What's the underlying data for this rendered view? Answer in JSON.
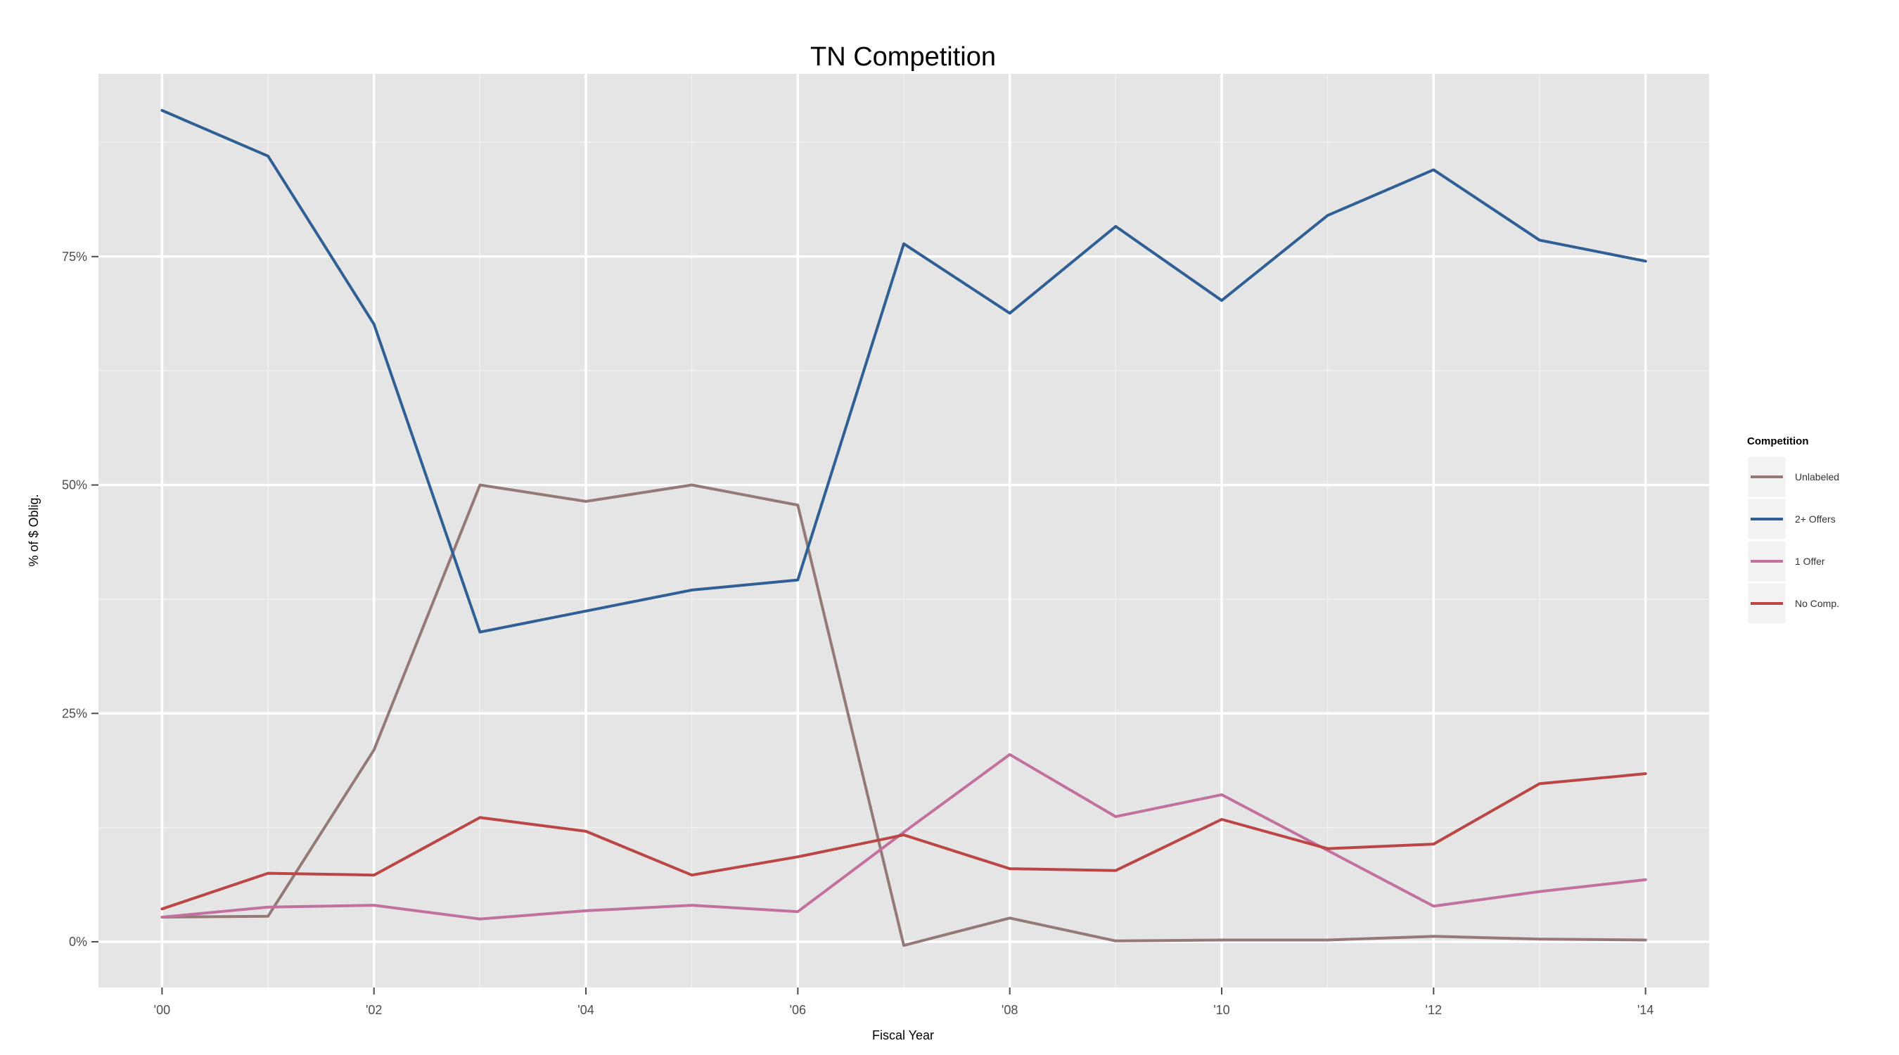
{
  "chart_data": {
    "type": "line",
    "title": "TN Competition",
    "xlabel": "Fiscal Year",
    "ylabel": "% of $ Oblig.",
    "x": [
      2000,
      2001,
      2002,
      2003,
      2004,
      2005,
      2006,
      2007,
      2008,
      2009,
      2010,
      2011,
      2012,
      2013,
      2014
    ],
    "xlim": [
      1999.4,
      2014.6
    ],
    "ylim": [
      -0.05,
      0.95
    ],
    "x_ticks": [
      {
        "value": 2000,
        "label": "'00"
      },
      {
        "value": 2002,
        "label": "'02"
      },
      {
        "value": 2004,
        "label": "'04"
      },
      {
        "value": 2006,
        "label": "'06"
      },
      {
        "value": 2008,
        "label": "'08"
      },
      {
        "value": 2010,
        "label": "'10"
      },
      {
        "value": 2012,
        "label": "'12"
      },
      {
        "value": 2014,
        "label": "'14"
      }
    ],
    "y_ticks": [
      {
        "value": 0,
        "label": "0%"
      },
      {
        "value": 0.25,
        "label": "25%"
      },
      {
        "value": 0.5,
        "label": "50%"
      },
      {
        "value": 0.75,
        "label": "75%"
      }
    ],
    "grid": true,
    "legend": {
      "title": "Competition",
      "position": "right"
    },
    "series": [
      {
        "name": "Unlabeled",
        "color": "#947a76",
        "values": [
          0.027,
          0.028,
          0.21,
          0.5,
          0.482,
          0.5,
          0.478,
          -0.004,
          0.026,
          0.001,
          0.002,
          0.002,
          0.006,
          0.003,
          0.002
        ]
      },
      {
        "name": "2+ Offers",
        "color": "#2f5f94",
        "values": [
          0.91,
          0.86,
          0.676,
          0.339,
          0.362,
          0.385,
          0.396,
          0.764,
          0.688,
          0.783,
          0.702,
          0.795,
          0.845,
          0.768,
          0.745
        ]
      },
      {
        "name": "1 Offer",
        "color": "#c2719f",
        "values": [
          0.027,
          0.038,
          0.04,
          0.025,
          0.034,
          0.04,
          0.033,
          0.12,
          0.205,
          0.137,
          0.161,
          0.1,
          0.039,
          0.055,
          0.068
        ]
      },
      {
        "name": "No Comp.",
        "color": "#bc4545",
        "values": [
          0.036,
          0.075,
          0.073,
          0.136,
          0.121,
          0.073,
          0.093,
          0.117,
          0.08,
          0.078,
          0.134,
          0.102,
          0.107,
          0.173,
          0.184
        ]
      }
    ]
  }
}
